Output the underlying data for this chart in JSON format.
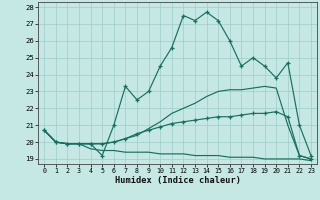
{
  "xlabel": "Humidex (Indice chaleur)",
  "bg_color": "#c5e8e5",
  "grid_color": "#9dccc8",
  "line_color": "#1a6e60",
  "xlim": [
    -0.5,
    23.5
  ],
  "ylim": [
    18.7,
    28.3
  ],
  "yticks": [
    19,
    20,
    21,
    22,
    23,
    24,
    25,
    26,
    27,
    28
  ],
  "xticks": [
    0,
    1,
    2,
    3,
    4,
    5,
    6,
    7,
    8,
    9,
    10,
    11,
    12,
    13,
    14,
    15,
    16,
    17,
    18,
    19,
    20,
    21,
    22,
    23
  ],
  "curve1_y": [
    20.7,
    20.0,
    19.9,
    19.9,
    19.9,
    19.2,
    21.0,
    23.3,
    22.5,
    23.0,
    24.5,
    25.6,
    27.5,
    27.2,
    27.7,
    27.2,
    26.0,
    24.5,
    25.0,
    24.5,
    23.8,
    24.7,
    21.0,
    19.2
  ],
  "curve2_y": [
    20.7,
    20.0,
    19.9,
    19.9,
    19.9,
    19.9,
    20.0,
    20.2,
    20.4,
    20.8,
    21.2,
    21.7,
    22.0,
    22.3,
    22.7,
    23.0,
    23.1,
    23.1,
    23.2,
    23.3,
    23.2,
    21.0,
    19.2,
    19.0
  ],
  "curve3_y": [
    20.7,
    20.0,
    19.9,
    19.9,
    19.6,
    19.5,
    19.5,
    19.4,
    19.4,
    19.4,
    19.3,
    19.3,
    19.3,
    19.2,
    19.2,
    19.2,
    19.1,
    19.1,
    19.1,
    19.0,
    19.0,
    19.0,
    19.0,
    18.9
  ],
  "curve4_y": [
    20.7,
    20.0,
    19.9,
    19.9,
    19.9,
    19.9,
    20.0,
    20.2,
    20.5,
    20.7,
    20.9,
    21.1,
    21.2,
    21.3,
    21.4,
    21.5,
    21.5,
    21.6,
    21.7,
    21.7,
    21.8,
    21.5,
    19.2,
    19.0
  ]
}
